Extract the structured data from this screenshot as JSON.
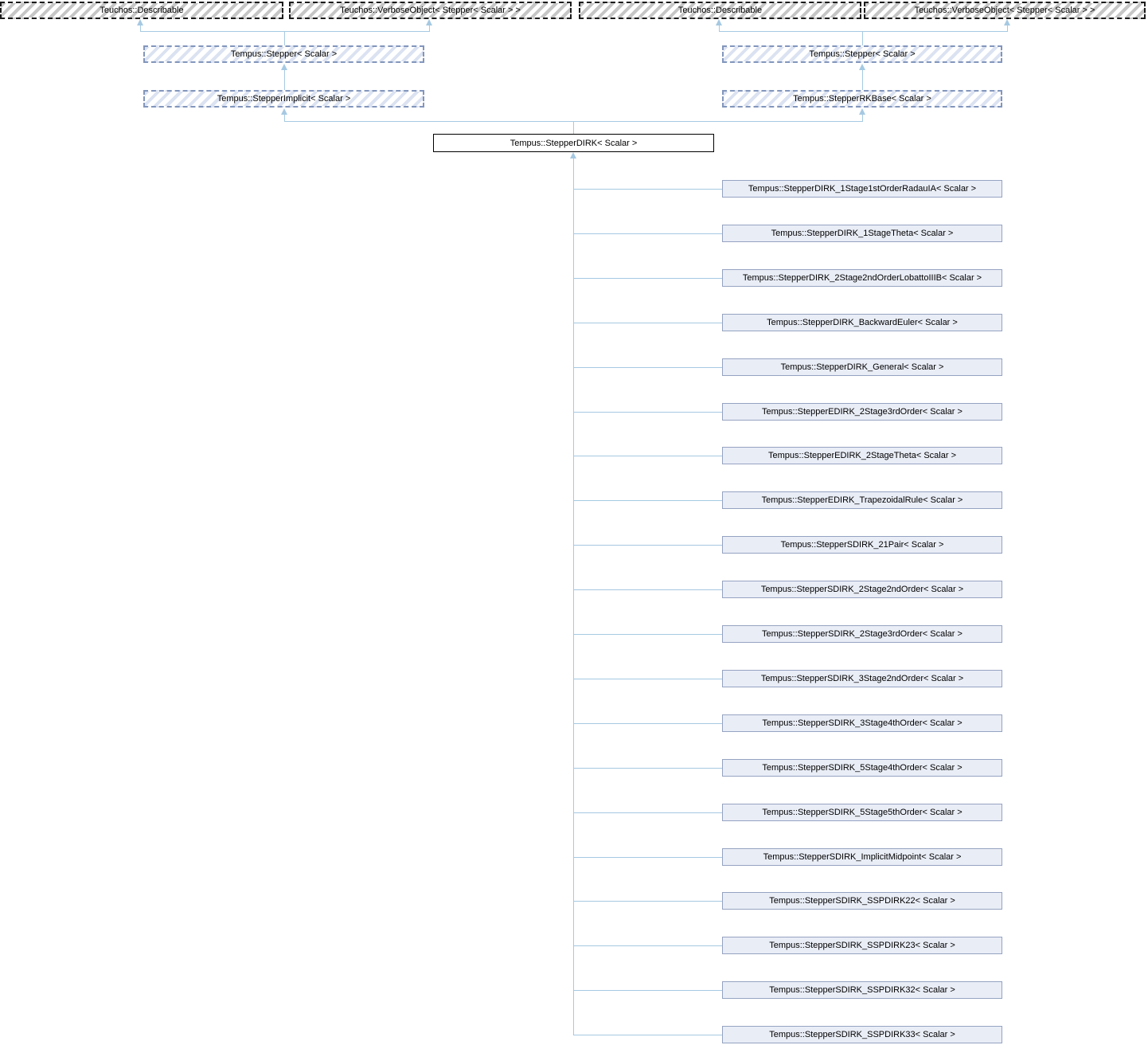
{
  "diagram": {
    "external_bases": [
      {
        "label": "Teuchos::Describable"
      },
      {
        "label": "Teuchos::VerboseObject< Stepper< Scalar > >"
      },
      {
        "label": "Teuchos::Describable"
      },
      {
        "label": "Teuchos::VerboseObject< Stepper< Scalar > >"
      }
    ],
    "left_chain": {
      "stepper": "Tempus::Stepper< Scalar >",
      "implicit": "Tempus::StepperImplicit< Scalar >"
    },
    "right_chain": {
      "stepper": "Tempus::Stepper< Scalar >",
      "rkbase": "Tempus::StepperRKBase< Scalar >"
    },
    "root": "Tempus::StepperDIRK< Scalar >",
    "children": [
      "Tempus::StepperDIRK_1Stage1stOrderRadauIA< Scalar >",
      "Tempus::StepperDIRK_1StageTheta< Scalar >",
      "Tempus::StepperDIRK_2Stage2ndOrderLobattoIIIB< Scalar >",
      "Tempus::StepperDIRK_BackwardEuler< Scalar >",
      "Tempus::StepperDIRK_General< Scalar >",
      "Tempus::StepperEDIRK_2Stage3rdOrder< Scalar >",
      "Tempus::StepperEDIRK_2StageTheta< Scalar >",
      "Tempus::StepperEDIRK_TrapezoidalRule< Scalar >",
      "Tempus::StepperSDIRK_21Pair< Scalar >",
      "Tempus::StepperSDIRK_2Stage2ndOrder< Scalar >",
      "Tempus::StepperSDIRK_2Stage3rdOrder< Scalar >",
      "Tempus::StepperSDIRK_3Stage2ndOrder< Scalar >",
      "Tempus::StepperSDIRK_3Stage4thOrder< Scalar >",
      "Tempus::StepperSDIRK_5Stage4thOrder< Scalar >",
      "Tempus::StepperSDIRK_5Stage5thOrder< Scalar >",
      "Tempus::StepperSDIRK_ImplicitMidpoint< Scalar >",
      "Tempus::StepperSDIRK_SSPDIRK22< Scalar >",
      "Tempus::StepperSDIRK_SSPDIRK23< Scalar >",
      "Tempus::StepperSDIRK_SSPDIRK32< Scalar >",
      "Tempus::StepperSDIRK_SSPDIRK33< Scalar >"
    ],
    "colors": {
      "connector": "#a6c9e2",
      "gray-hatch": "#c6c6c6",
      "blue-hatch": "#dbe2f1",
      "blue-dash": "#8296bc",
      "child-fill": "#e9edf6",
      "child-border": "#95a3c2"
    }
  }
}
